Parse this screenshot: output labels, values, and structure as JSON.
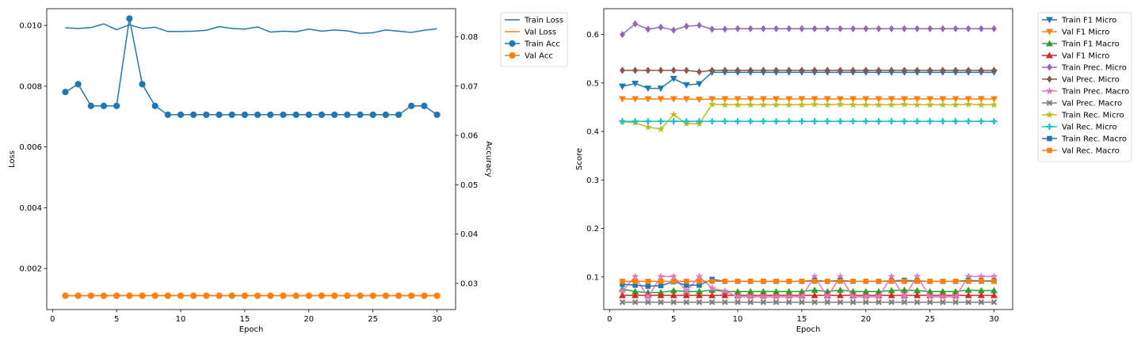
{
  "chart_data": [
    {
      "type": "line",
      "xlabel": "Epoch",
      "ylabel": "Loss",
      "y2label": "Accuracy",
      "xlim": [
        -0.45,
        31.45
      ],
      "ylim": [
        0.00065,
        0.01055
      ],
      "y2lim": [
        0.0247,
        0.0857
      ],
      "xticks": [
        0,
        5,
        10,
        15,
        20,
        25,
        30
      ],
      "yticks": [
        0.002,
        0.004,
        0.006,
        0.008,
        0.01
      ],
      "ytick_labels": [
        "0.002",
        "0.004",
        "0.006",
        "0.008",
        "0.010"
      ],
      "y2ticks": [
        0.03,
        0.04,
        0.05,
        0.06,
        0.07,
        0.08
      ],
      "y2tick_labels": [
        "0.03",
        "0.04",
        "0.05",
        "0.06",
        "0.07",
        "0.08"
      ],
      "grid": false,
      "legend": "outside-right-top",
      "x": [
        1,
        2,
        3,
        4,
        5,
        6,
        7,
        8,
        9,
        10,
        11,
        12,
        13,
        14,
        15,
        16,
        17,
        18,
        19,
        20,
        21,
        22,
        23,
        24,
        25,
        26,
        27,
        28,
        29,
        30
      ],
      "series": [
        {
          "name": "Train Loss",
          "axis": "left",
          "color": "#1f77b4",
          "marker": "none",
          "values": [
            0.00992,
            0.0099,
            0.00993,
            0.01005,
            0.00986,
            0.01002,
            0.0099,
            0.00994,
            0.0098,
            0.0098,
            0.00981,
            0.00984,
            0.00996,
            0.0099,
            0.00988,
            0.00995,
            0.00978,
            0.00981,
            0.00979,
            0.00988,
            0.00981,
            0.00985,
            0.00982,
            0.00974,
            0.00976,
            0.00985,
            0.00981,
            0.00977,
            0.00984,
            0.00989
          ]
        },
        {
          "name": "Val Loss",
          "axis": "left",
          "color": "#ff7f0e",
          "marker": "none",
          "values": [
            0.00111,
            0.00111,
            0.00111,
            0.00111,
            0.00111,
            0.00111,
            0.00111,
            0.00111,
            0.00111,
            0.00111,
            0.00111,
            0.00111,
            0.00111,
            0.00111,
            0.00111,
            0.00111,
            0.00111,
            0.00111,
            0.00111,
            0.00111,
            0.00111,
            0.00111,
            0.00111,
            0.00111,
            0.00111,
            0.00111,
            0.00111,
            0.00111,
            0.00111,
            0.00111
          ]
        },
        {
          "name": "Train Acc",
          "axis": "right",
          "color": "#1f77b4",
          "marker": "circle",
          "values": [
            0.0688,
            0.0704,
            0.066,
            0.066,
            0.066,
            0.0837,
            0.0704,
            0.066,
            0.0642,
            0.0642,
            0.0642,
            0.0642,
            0.0642,
            0.0642,
            0.0642,
            0.0642,
            0.0642,
            0.0642,
            0.0642,
            0.0642,
            0.0642,
            0.0642,
            0.0642,
            0.0642,
            0.0642,
            0.0642,
            0.0642,
            0.066,
            0.066,
            0.0642
          ]
        },
        {
          "name": "Val Acc",
          "axis": "right",
          "color": "#ff7f0e",
          "marker": "circle",
          "values": [
            0.0275,
            0.0275,
            0.0275,
            0.0275,
            0.0275,
            0.0275,
            0.0275,
            0.0275,
            0.0275,
            0.0275,
            0.0275,
            0.0275,
            0.0275,
            0.0275,
            0.0275,
            0.0275,
            0.0275,
            0.0275,
            0.0275,
            0.0275,
            0.0275,
            0.0275,
            0.0275,
            0.0275,
            0.0275,
            0.0275,
            0.0275,
            0.0275,
            0.0275,
            0.0275
          ]
        }
      ]
    },
    {
      "type": "line",
      "xlabel": "Epoch",
      "ylabel": "Score",
      "xlim": [
        -0.45,
        31.45
      ],
      "ylim": [
        0.0328,
        0.6532
      ],
      "xticks": [
        0,
        5,
        10,
        15,
        20,
        25,
        30
      ],
      "yticks": [
        0.1,
        0.2,
        0.3,
        0.4,
        0.5,
        0.6
      ],
      "ytick_labels": [
        "0.1",
        "0.2",
        "0.3",
        "0.4",
        "0.5",
        "0.6"
      ],
      "grid": false,
      "legend": "outside-right-top",
      "x": [
        1,
        2,
        3,
        4,
        5,
        6,
        7,
        8,
        9,
        10,
        11,
        12,
        13,
        14,
        15,
        16,
        17,
        18,
        19,
        20,
        21,
        22,
        23,
        24,
        25,
        26,
        27,
        28,
        29,
        30
      ],
      "series": [
        {
          "name": "Train F1 Micro",
          "color": "#1f77b4",
          "marker": "triangle_down",
          "values": [
            0.493,
            0.499,
            0.489,
            0.489,
            0.509,
            0.496,
            0.498,
            0.522,
            0.522,
            0.522,
            0.522,
            0.522,
            0.522,
            0.522,
            0.522,
            0.522,
            0.522,
            0.522,
            0.522,
            0.522,
            0.522,
            0.522,
            0.522,
            0.522,
            0.522,
            0.522,
            0.522,
            0.522,
            0.522,
            0.522
          ]
        },
        {
          "name": "Val F1 Micro",
          "color": "#ff7f0e",
          "marker": "triangle_down",
          "values": [
            0.467,
            0.467,
            0.467,
            0.467,
            0.467,
            0.467,
            0.466,
            0.467,
            0.467,
            0.467,
            0.467,
            0.467,
            0.467,
            0.467,
            0.467,
            0.467,
            0.467,
            0.467,
            0.467,
            0.467,
            0.467,
            0.467,
            0.467,
            0.467,
            0.467,
            0.467,
            0.467,
            0.467,
            0.467,
            0.467
          ]
        },
        {
          "name": "Train F1 Macro",
          "color": "#2ca02c",
          "marker": "triangle_up",
          "values": [
            0.075,
            0.07,
            0.068,
            0.068,
            0.072,
            0.07,
            0.07,
            0.073,
            0.07,
            0.07,
            0.07,
            0.07,
            0.07,
            0.07,
            0.07,
            0.073,
            0.07,
            0.073,
            0.07,
            0.07,
            0.07,
            0.072,
            0.073,
            0.072,
            0.07,
            0.07,
            0.07,
            0.073,
            0.072,
            0.072
          ]
        },
        {
          "name": "Val F1 Micro",
          "color": "#d62728",
          "marker": "triangle_up",
          "values": [
            0.062,
            0.062,
            0.062,
            0.062,
            0.062,
            0.062,
            0.062,
            0.062,
            0.062,
            0.062,
            0.062,
            0.062,
            0.062,
            0.062,
            0.062,
            0.062,
            0.062,
            0.062,
            0.062,
            0.062,
            0.062,
            0.062,
            0.062,
            0.062,
            0.062,
            0.062,
            0.062,
            0.062,
            0.062,
            0.062
          ]
        },
        {
          "name": "Train Prec. Micro",
          "color": "#9467bd",
          "marker": "diamond",
          "values": [
            0.6,
            0.622,
            0.611,
            0.615,
            0.609,
            0.617,
            0.619,
            0.611,
            0.611,
            0.612,
            0.612,
            0.612,
            0.612,
            0.612,
            0.612,
            0.612,
            0.612,
            0.612,
            0.612,
            0.612,
            0.612,
            0.612,
            0.612,
            0.612,
            0.612,
            0.612,
            0.612,
            0.612,
            0.612,
            0.612
          ]
        },
        {
          "name": "Val Prec. Micro",
          "color": "#8c564b",
          "marker": "diamond",
          "values": [
            0.526,
            0.526,
            0.526,
            0.526,
            0.526,
            0.526,
            0.523,
            0.526,
            0.526,
            0.526,
            0.526,
            0.526,
            0.526,
            0.526,
            0.526,
            0.526,
            0.526,
            0.526,
            0.526,
            0.526,
            0.526,
            0.526,
            0.526,
            0.526,
            0.526,
            0.526,
            0.526,
            0.526,
            0.526,
            0.526
          ]
        },
        {
          "name": "Train Prec. Macro",
          "color": "#e377c2",
          "marker": "star",
          "values": [
            0.071,
            0.101,
            0.058,
            0.101,
            0.101,
            0.071,
            0.101,
            0.077,
            0.071,
            0.059,
            0.059,
            0.059,
            0.059,
            0.059,
            0.059,
            0.101,
            0.059,
            0.101,
            0.059,
            0.059,
            0.059,
            0.101,
            0.059,
            0.101,
            0.059,
            0.059,
            0.059,
            0.101,
            0.101,
            0.101
          ]
        },
        {
          "name": "Val Prec. Macro",
          "color": "#7f7f7f",
          "marker": "x",
          "values": [
            0.048,
            0.048,
            0.048,
            0.048,
            0.048,
            0.048,
            0.048,
            0.048,
            0.048,
            0.048,
            0.048,
            0.048,
            0.048,
            0.048,
            0.048,
            0.048,
            0.048,
            0.048,
            0.048,
            0.048,
            0.048,
            0.048,
            0.048,
            0.048,
            0.048,
            0.048,
            0.048,
            0.048,
            0.048,
            0.048
          ]
        },
        {
          "name": "Train Rec. Micro",
          "color": "#bcbd22",
          "marker": "star",
          "values": [
            0.42,
            0.418,
            0.409,
            0.405,
            0.435,
            0.416,
            0.416,
            0.456,
            0.455,
            0.455,
            0.455,
            0.455,
            0.455,
            0.455,
            0.455,
            0.456,
            0.455,
            0.456,
            0.455,
            0.455,
            0.455,
            0.455,
            0.456,
            0.455,
            0.455,
            0.455,
            0.455,
            0.456,
            0.455,
            0.455
          ]
        },
        {
          "name": "Val Rec. Micro",
          "color": "#17becf",
          "marker": "plus",
          "values": [
            0.421,
            0.421,
            0.421,
            0.421,
            0.421,
            0.421,
            0.421,
            0.421,
            0.421,
            0.421,
            0.421,
            0.421,
            0.421,
            0.421,
            0.421,
            0.421,
            0.421,
            0.421,
            0.421,
            0.421,
            0.421,
            0.421,
            0.421,
            0.421,
            0.421,
            0.421,
            0.421,
            0.421,
            0.421,
            0.421
          ]
        },
        {
          "name": "Train Rec. Macro",
          "color": "#1f77b4",
          "marker": "square",
          "values": [
            0.085,
            0.083,
            0.081,
            0.082,
            0.09,
            0.083,
            0.083,
            0.095,
            0.091,
            0.091,
            0.091,
            0.091,
            0.091,
            0.091,
            0.091,
            0.093,
            0.091,
            0.093,
            0.091,
            0.091,
            0.091,
            0.092,
            0.093,
            0.092,
            0.091,
            0.091,
            0.091,
            0.093,
            0.092,
            0.092
          ]
        },
        {
          "name": "Val Rec. Macro",
          "color": "#ff7f0e",
          "marker": "square",
          "values": [
            0.091,
            0.091,
            0.091,
            0.091,
            0.091,
            0.091,
            0.091,
            0.091,
            0.091,
            0.091,
            0.091,
            0.091,
            0.091,
            0.091,
            0.091,
            0.091,
            0.091,
            0.091,
            0.091,
            0.091,
            0.091,
            0.091,
            0.091,
            0.091,
            0.091,
            0.091,
            0.091,
            0.091,
            0.091,
            0.091
          ]
        }
      ]
    }
  ]
}
